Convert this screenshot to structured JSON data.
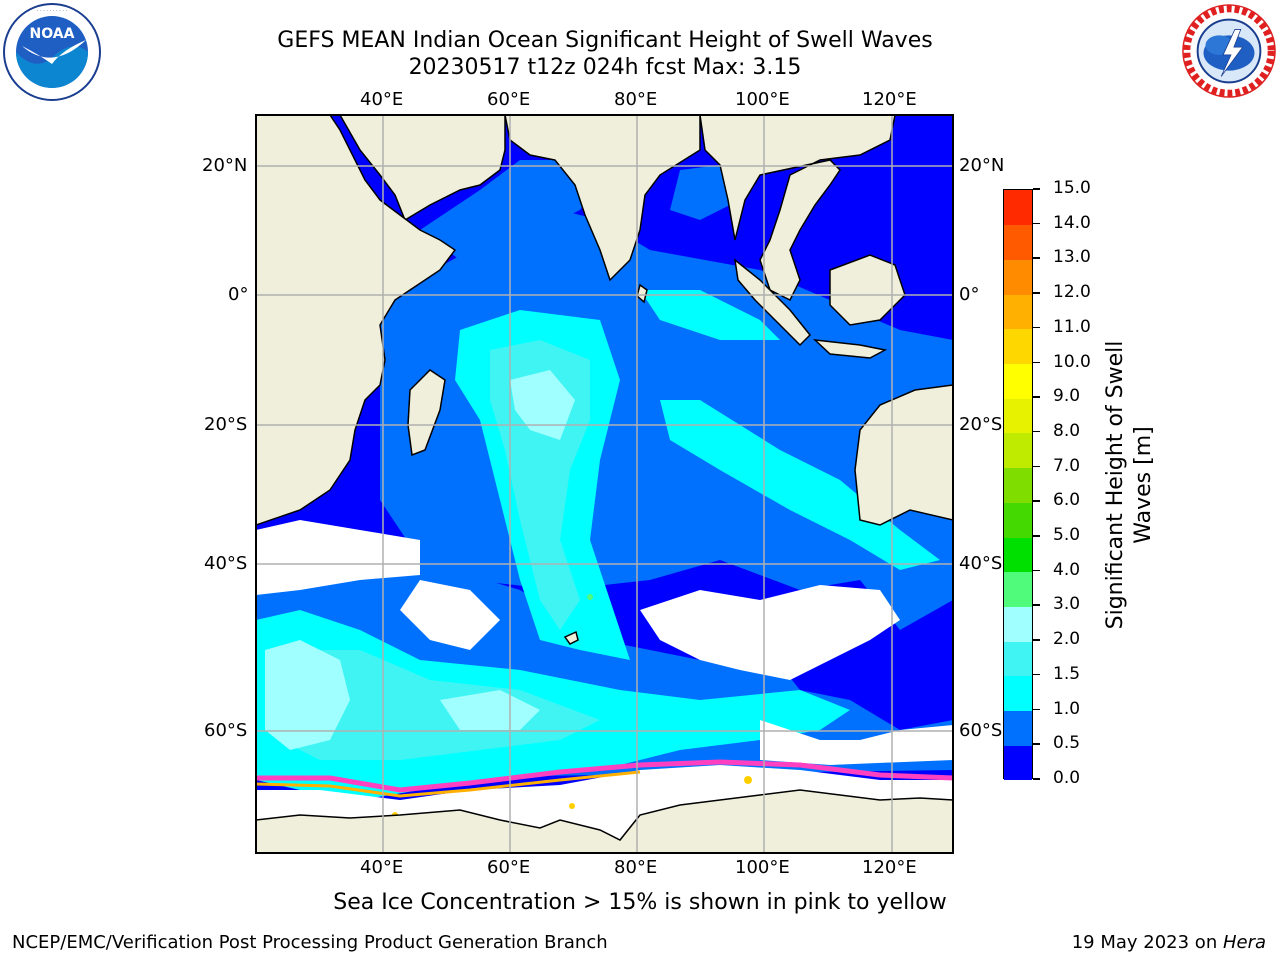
{
  "title": {
    "line1": "GEFS MEAN Indian Ocean Significant Height of Swell Waves",
    "line2": "20230517 t12z 024h fcst   Max: 3.15"
  },
  "logos": {
    "left": {
      "name": "NOAA",
      "ring_text": "NATIONAL OCEANIC AND ATMOSPHERIC ADMINISTRATION · U.S. DEPARTMENT OF COMMERCE"
    },
    "right": {
      "name": "NATIONAL WEATHER SERVICE"
    }
  },
  "map": {
    "lon_labels": [
      "40°E",
      "60°E",
      "80°E",
      "100°E",
      "120°E"
    ],
    "lat_labels": [
      "20°N",
      "0°",
      "20°S",
      "40°S",
      "60°S"
    ],
    "colors": {
      "land": "#efefdc",
      "no_data": "#ffffff",
      "grid": "#b0b0b0",
      "coast": "#000000"
    }
  },
  "colorbar": {
    "label_line1": "Significant Height of Swell",
    "label_line2": "Waves [m]",
    "ticks": [
      "0.0",
      "0.5",
      "1.0",
      "1.5",
      "2.0",
      "3.0",
      "4.0",
      "5.0",
      "6.0",
      "7.0",
      "8.0",
      "9.0",
      "10.0",
      "11.0",
      "12.0",
      "13.0",
      "14.0",
      "15.0"
    ],
    "colors": [
      "#0000ff",
      "#0070ff",
      "#00ffff",
      "#40f4f4",
      "#a0ffff",
      "#50fa7a",
      "#00e000",
      "#44d900",
      "#80dd00",
      "#bfeb00",
      "#e6f200",
      "#ffff00",
      "#ffd700",
      "#ffb000",
      "#ff8c00",
      "#ff5a00",
      "#ff2a00",
      "#ff0000"
    ]
  },
  "caption": "Sea Ice Concentration > 15% is shown in pink to yellow",
  "footer": {
    "left": "NCEP/EMC/Verification Post Processing Product Generation Branch",
    "right_date": "19 May 2023 on ",
    "right_host": "Hera"
  }
}
